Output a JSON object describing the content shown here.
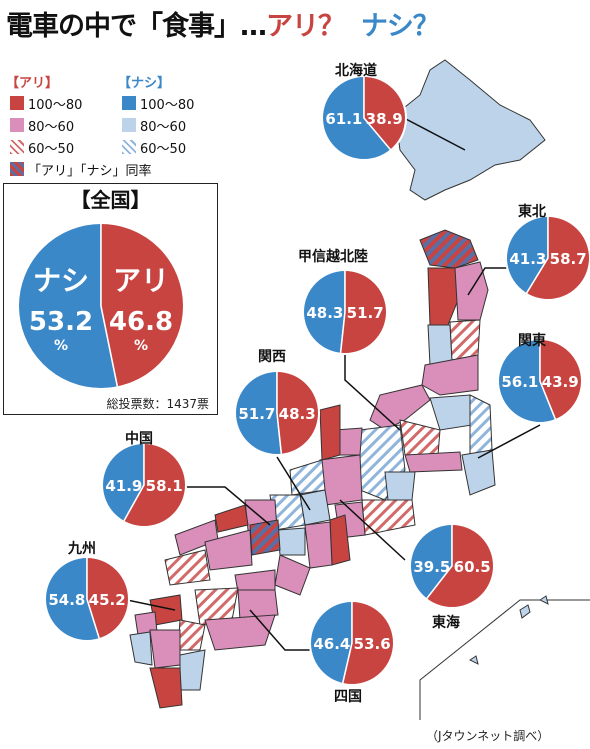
{
  "title": {
    "main": "電車の中で「食事」…",
    "yes": "アリ？",
    "no": "ナシ？"
  },
  "colors": {
    "yes_strong": "#c84441",
    "yes_mid": "#d98fba",
    "yes_light_hatch": "#c84441",
    "no_strong": "#3b88c9",
    "no_mid": "#bcd3ea",
    "no_light_hatch": "#5b8fc9",
    "tie_hatch": "#8a6a9a",
    "map_outline": "#333333"
  },
  "legend": {
    "yes_header": "【アリ】",
    "no_header": "【ナシ】",
    "yes_items": [
      "100〜80",
      "80〜60",
      "60〜50"
    ],
    "no_items": [
      "100〜80",
      "80〜60",
      "60〜50"
    ],
    "tie": "「アリ」「ナシ」同率"
  },
  "national": {
    "title": "【全国】",
    "no_label": "ナシ",
    "no_value": "53.2",
    "no_unit": "%",
    "yes_label": "アリ",
    "yes_value": "46.8",
    "yes_unit": "%",
    "total": "総投票数：1437票"
  },
  "source": "（Jタウンネット調べ）",
  "chart_data": [
    {
      "type": "pie",
      "region": "全国",
      "slices": [
        {
          "label": "アリ",
          "value": 46.8
        },
        {
          "label": "ナシ",
          "value": 53.2
        }
      ]
    },
    {
      "type": "pie",
      "region": "北海道",
      "slices": [
        {
          "label": "アリ",
          "value": 38.9
        },
        {
          "label": "ナシ",
          "value": 61.1
        }
      ]
    },
    {
      "type": "pie",
      "region": "東北",
      "slices": [
        {
          "label": "アリ",
          "value": 58.7
        },
        {
          "label": "ナシ",
          "value": 41.3
        }
      ]
    },
    {
      "type": "pie",
      "region": "甲信越北陸",
      "slices": [
        {
          "label": "アリ",
          "value": 51.7
        },
        {
          "label": "ナシ",
          "value": 48.3
        }
      ]
    },
    {
      "type": "pie",
      "region": "関東",
      "slices": [
        {
          "label": "アリ",
          "value": 43.9
        },
        {
          "label": "ナシ",
          "value": 56.1
        }
      ]
    },
    {
      "type": "pie",
      "region": "関西",
      "slices": [
        {
          "label": "アリ",
          "value": 48.3
        },
        {
          "label": "ナシ",
          "value": 51.7
        }
      ]
    },
    {
      "type": "pie",
      "region": "中国",
      "slices": [
        {
          "label": "アリ",
          "value": 58.1
        },
        {
          "label": "ナシ",
          "value": 41.9
        }
      ]
    },
    {
      "type": "pie",
      "region": "九州",
      "slices": [
        {
          "label": "アリ",
          "value": 45.2
        },
        {
          "label": "ナシ",
          "value": 54.8
        }
      ]
    },
    {
      "type": "pie",
      "region": "東海",
      "slices": [
        {
          "label": "アリ",
          "value": 60.5
        },
        {
          "label": "ナシ",
          "value": 39.5
        }
      ]
    },
    {
      "type": "pie",
      "region": "四国",
      "slices": [
        {
          "label": "アリ",
          "value": 53.6
        },
        {
          "label": "ナシ",
          "value": 46.4
        }
      ]
    }
  ]
}
